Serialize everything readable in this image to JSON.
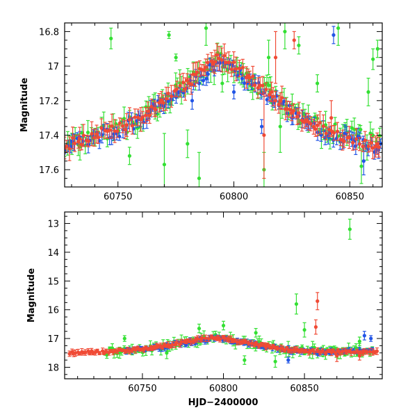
{
  "chart_data": [
    {
      "type": "scatter",
      "panel": "top",
      "title": "",
      "xlabel": "",
      "ylabel": "Magnitude",
      "xlim": [
        60727,
        60864
      ],
      "ylim": [
        17.7,
        16.75
      ],
      "y_inverted": true,
      "x_ticks": [
        60750,
        60800,
        60850
      ],
      "y_ticks": [
        16.8,
        17,
        17.2,
        17.4,
        17.6
      ],
      "x_tick_labels": [
        "60750",
        "60800",
        "60850"
      ],
      "y_tick_labels": [
        "16.8",
        "17",
        "17.2",
        "17.4",
        "17.6"
      ],
      "errorbars": true,
      "grid": false,
      "series": [
        {
          "color": "#33e033",
          "trend": [
            [
              60727,
              17.47
            ],
            [
              60740,
              17.4
            ],
            [
              60750,
              17.37
            ],
            [
              60760,
              17.3
            ],
            [
              60770,
              17.2
            ],
            [
              60780,
              17.1
            ],
            [
              60790,
              16.99
            ],
            [
              60795,
              16.96
            ],
            [
              60800,
              17.0
            ],
            [
              60810,
              17.11
            ],
            [
              60820,
              17.2
            ],
            [
              60830,
              17.3
            ],
            [
              60840,
              17.37
            ],
            [
              60850,
              17.4
            ],
            [
              60864,
              17.45
            ]
          ],
          "scatter_spread": 0.05,
          "error_range": [
            0.02,
            0.08
          ],
          "outliers": [
            [
              60747,
              16.84,
              0.06
            ],
            [
              60755,
              17.52,
              0.05
            ],
            [
              60770,
              17.57,
              0.18
            ],
            [
              60772,
              16.82,
              0.02
            ],
            [
              60775,
              16.95,
              0.02
            ],
            [
              60780,
              17.45,
              0.08
            ],
            [
              60785,
              17.65,
              0.15
            ],
            [
              60788,
              16.78,
              0.1
            ],
            [
              60795,
              17.1,
              0.05
            ],
            [
              60813,
              17.6,
              0.1
            ],
            [
              60815,
              16.95,
              0.1
            ],
            [
              60820,
              17.35,
              0.15
            ],
            [
              60822,
              16.8,
              0.1
            ],
            [
              60828,
              16.88,
              0.05
            ],
            [
              60836,
              17.1,
              0.05
            ],
            [
              60845,
              16.78,
              0.1
            ],
            [
              60855,
              17.58,
              0.1
            ],
            [
              60858,
              17.15,
              0.08
            ],
            [
              60860,
              16.96,
              0.06
            ],
            [
              60862,
              16.9,
              0.05
            ]
          ]
        },
        {
          "color": "#2255e6",
          "trend": [
            [
              60727,
              17.47
            ],
            [
              60740,
              17.41
            ],
            [
              60750,
              17.38
            ],
            [
              60760,
              17.31
            ],
            [
              60770,
              17.21
            ],
            [
              60780,
              17.12
            ],
            [
              60790,
              17.02
            ],
            [
              60795,
              16.99
            ],
            [
              60800,
              17.03
            ],
            [
              60810,
              17.12
            ],
            [
              60820,
              17.22
            ],
            [
              60830,
              17.31
            ],
            [
              60840,
              17.39
            ],
            [
              60850,
              17.42
            ],
            [
              60864,
              17.48
            ]
          ],
          "scatter_spread": 0.035,
          "error_range": [
            0.02,
            0.05
          ],
          "outliers": [
            [
              60782,
              17.2,
              0.05
            ],
            [
              60800,
              17.15,
              0.04
            ],
            [
              60812,
              17.35,
              0.04
            ],
            [
              60825,
              17.3,
              0.04
            ],
            [
              60843,
              16.82,
              0.05
            ],
            [
              60856,
              17.55,
              0.08
            ]
          ]
        },
        {
          "color": "#f04a35",
          "trend": [
            [
              60727,
              17.46
            ],
            [
              60740,
              17.4
            ],
            [
              60750,
              17.36
            ],
            [
              60760,
              17.3
            ],
            [
              60770,
              17.2
            ],
            [
              60780,
              17.1
            ],
            [
              60790,
              16.98
            ],
            [
              60795,
              16.95
            ],
            [
              60800,
              17.0
            ],
            [
              60810,
              17.1
            ],
            [
              60820,
              17.2
            ],
            [
              60830,
              17.3
            ],
            [
              60840,
              17.38
            ],
            [
              60850,
              17.42
            ],
            [
              60864,
              17.47
            ]
          ],
          "scatter_spread": 0.03,
          "error_range": [
            0.03,
            0.07
          ],
          "outliers": [
            [
              60813,
              17.4,
              0.25
            ],
            [
              60818,
              16.95,
              0.15
            ],
            [
              60826,
              16.85,
              0.05
            ],
            [
              60842,
              17.3,
              0.1
            ]
          ]
        }
      ]
    },
    {
      "type": "scatter",
      "panel": "bottom",
      "title": "",
      "xlabel": "HJD−2400000",
      "ylabel": "Magnitude",
      "xlim": [
        60702,
        60898
      ],
      "ylim": [
        18.4,
        12.6
      ],
      "y_inverted": true,
      "x_ticks": [
        60750,
        60800,
        60850
      ],
      "y_ticks": [
        13,
        14,
        15,
        16,
        17,
        18
      ],
      "x_tick_labels": [
        "60750",
        "60800",
        "60850"
      ],
      "y_tick_labels": [
        "13",
        "14",
        "15",
        "16",
        "17",
        "18"
      ],
      "errorbars": true,
      "grid": false,
      "series": [
        {
          "color": "#33e033",
          "trend": [
            [
              60727,
              17.47
            ],
            [
              60740,
              17.4
            ],
            [
              60750,
              17.37
            ],
            [
              60760,
              17.3
            ],
            [
              60770,
              17.2
            ],
            [
              60780,
              17.1
            ],
            [
              60790,
              16.99
            ],
            [
              60795,
              16.96
            ],
            [
              60800,
              17.0
            ],
            [
              60810,
              17.11
            ],
            [
              60820,
              17.2
            ],
            [
              60830,
              17.3
            ],
            [
              60840,
              17.37
            ],
            [
              60850,
              17.4
            ],
            [
              60864,
              17.45
            ],
            [
              60880,
              17.45
            ],
            [
              60893,
              17.45
            ]
          ],
          "scatter_spread": 0.12,
          "error_range": [
            0.05,
            0.2
          ],
          "outliers": [
            [
              60739,
              17.0,
              0.1
            ],
            [
              60765,
              17.5,
              0.2
            ],
            [
              60785,
              16.65,
              0.15
            ],
            [
              60800,
              16.55,
              0.15
            ],
            [
              60813,
              17.75,
              0.15
            ],
            [
              60820,
              16.8,
              0.15
            ],
            [
              60832,
              17.8,
              0.2
            ],
            [
              60840,
              17.3,
              0.2
            ],
            [
              60845,
              15.8,
              0.35
            ],
            [
              60850,
              16.7,
              0.25
            ],
            [
              60855,
              17.4,
              0.3
            ],
            [
              60878,
              13.2,
              0.35
            ],
            [
              60884,
              17.1,
              0.15
            ]
          ]
        },
        {
          "color": "#2255e6",
          "start": 60740,
          "trend": [
            [
              60740,
              17.41
            ],
            [
              60750,
              17.38
            ],
            [
              60760,
              17.31
            ],
            [
              60770,
              17.21
            ],
            [
              60780,
              17.12
            ],
            [
              60790,
              17.02
            ],
            [
              60795,
              16.99
            ],
            [
              60800,
              17.03
            ],
            [
              60810,
              17.12
            ],
            [
              60820,
              17.22
            ],
            [
              60830,
              17.31
            ],
            [
              60840,
              17.39
            ],
            [
              60850,
              17.42
            ],
            [
              60864,
              17.48
            ],
            [
              60880,
              17.45
            ],
            [
              60893,
              17.4
            ]
          ],
          "scatter_spread": 0.06,
          "error_range": [
            0.04,
            0.12
          ],
          "outliers": [
            [
              60840,
              17.75,
              0.1
            ],
            [
              60887,
              16.9,
              0.15
            ],
            [
              60891,
              17.0,
              0.1
            ]
          ]
        },
        {
          "color": "#f04a35",
          "trend": [
            [
              60705,
              17.5
            ],
            [
              60715,
              17.48
            ],
            [
              60727,
              17.46
            ],
            [
              60740,
              17.4
            ],
            [
              60750,
              17.36
            ],
            [
              60760,
              17.3
            ],
            [
              60770,
              17.2
            ],
            [
              60780,
              17.1
            ],
            [
              60790,
              16.98
            ],
            [
              60795,
              16.95
            ],
            [
              60800,
              17.0
            ],
            [
              60810,
              17.1
            ],
            [
              60820,
              17.2
            ],
            [
              60830,
              17.3
            ],
            [
              60840,
              17.38
            ],
            [
              60850,
              17.42
            ],
            [
              60864,
              17.47
            ],
            [
              60880,
              17.45
            ],
            [
              60895,
              17.45
            ]
          ],
          "scatter_spread": 0.05,
          "error_range": [
            0.05,
            0.12
          ],
          "outliers": [
            [
              60857,
              16.6,
              0.25
            ],
            [
              60858,
              15.7,
              0.3
            ],
            [
              60870,
              17.6,
              0.2
            ],
            [
              60884,
              17.6,
              0.15
            ]
          ]
        }
      ]
    }
  ]
}
